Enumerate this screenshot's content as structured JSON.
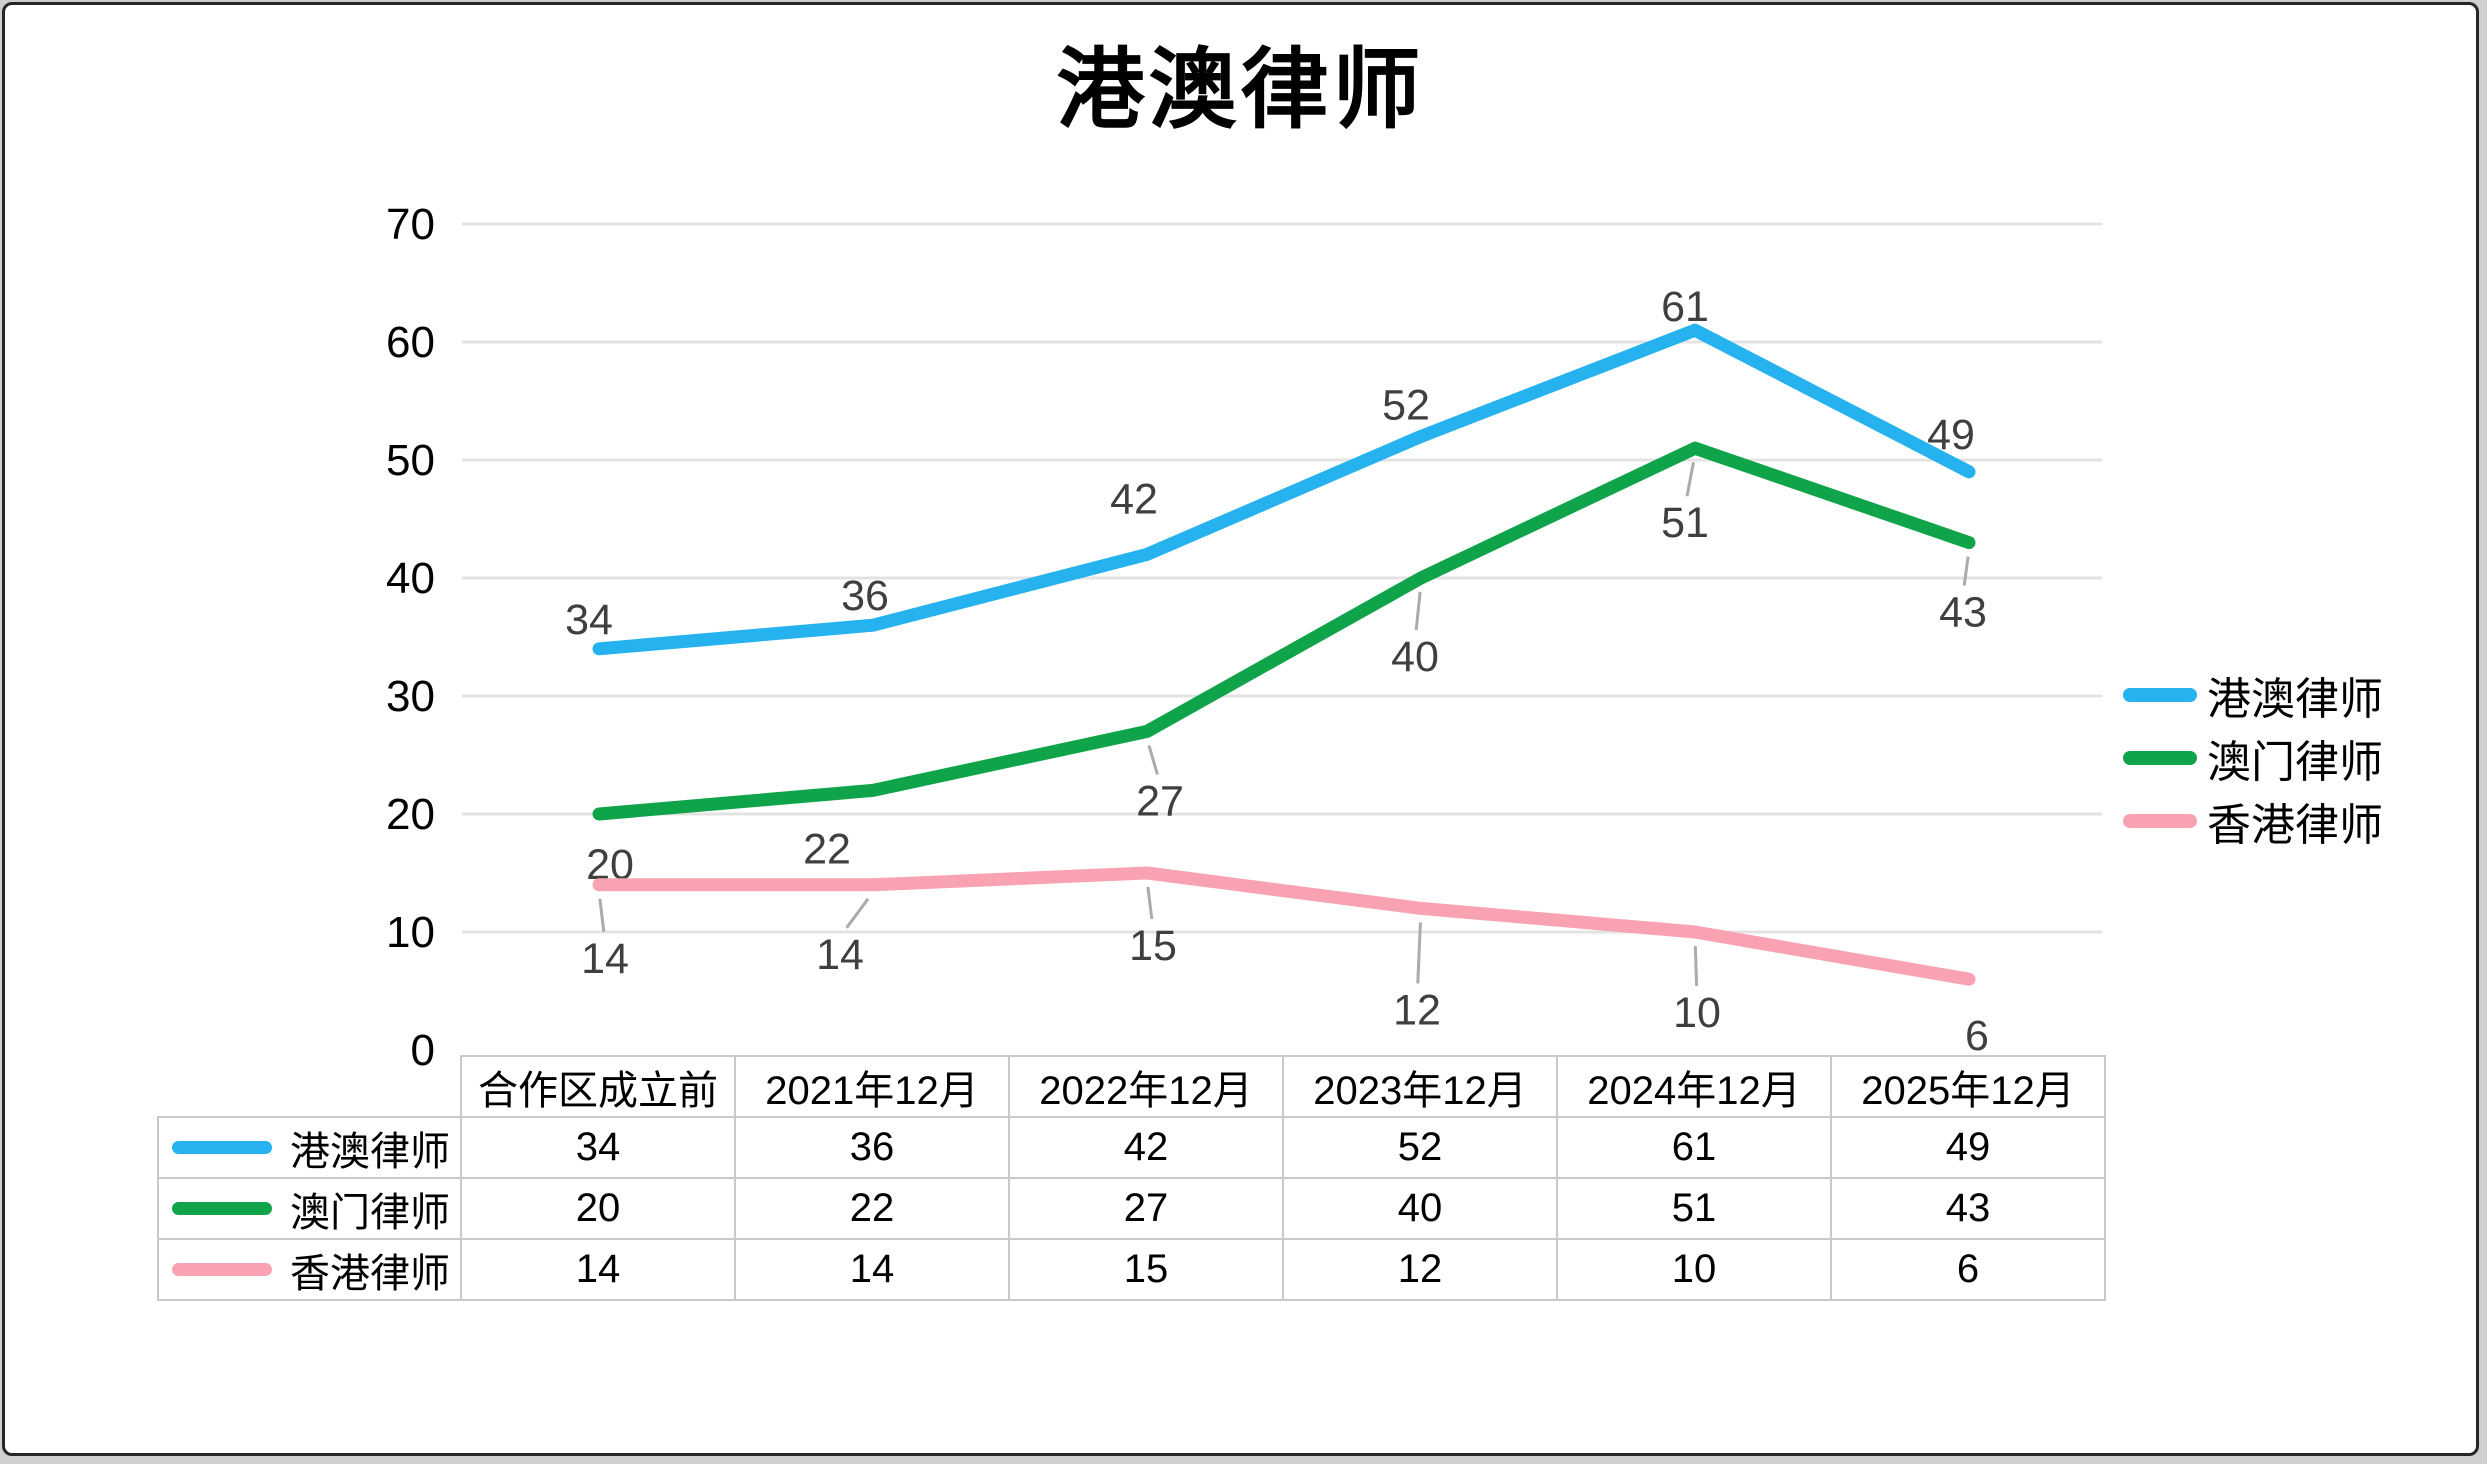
{
  "title": "港澳律师",
  "chart_data": {
    "type": "line",
    "title": "港澳律师",
    "categories": [
      "合作区成立前",
      "2021年12月",
      "2022年12月",
      "2023年12月",
      "2024年12月",
      "2025年12月"
    ],
    "series": [
      {
        "name": "港澳律师",
        "color": "#25B2EF",
        "values": [
          34,
          36,
          42,
          52,
          61,
          49
        ],
        "label_side": "above",
        "label_offsets": [
          [
            -10,
            -30
          ],
          [
            -8,
            -30
          ],
          [
            -13,
            -56
          ],
          [
            -15,
            -32
          ],
          [
            -10,
            -24
          ],
          [
            -18,
            -38
          ]
        ],
        "leaders": [
          false,
          false,
          false,
          false,
          false,
          false
        ]
      },
      {
        "name": "澳门律师",
        "color": "#0FA44A",
        "values": [
          20,
          22,
          27,
          40,
          51,
          43
        ],
        "label_side": "below",
        "label_offsets": [
          [
            11,
            50
          ],
          [
            -46,
            58
          ],
          [
            13,
            69
          ],
          [
            -6,
            78
          ],
          [
            -10,
            74
          ],
          [
            -6,
            69
          ]
        ],
        "leaders": [
          false,
          false,
          true,
          true,
          true,
          true
        ]
      },
      {
        "name": "香港律师",
        "color": "#F9A3B2",
        "values": [
          14,
          14,
          15,
          12,
          10,
          6
        ],
        "label_side": "below",
        "label_offsets": [
          [
            6,
            73
          ],
          [
            -33,
            69
          ],
          [
            6,
            72
          ],
          [
            -4,
            101
          ],
          [
            2,
            80
          ],
          [
            8,
            56
          ]
        ],
        "leaders": [
          true,
          true,
          true,
          true,
          true,
          false
        ]
      }
    ],
    "ylim": [
      0,
      70
    ],
    "yticks": [
      0,
      10,
      20,
      30,
      40,
      50,
      60,
      70
    ],
    "grid": true,
    "legend_position": "right",
    "colors": {
      "data_label": "#3F3F3F",
      "gridline": "#E3E3E3",
      "leader_line": "#ABABAB",
      "axis_text": "#000000",
      "table_border": "#C9C9C9"
    }
  }
}
